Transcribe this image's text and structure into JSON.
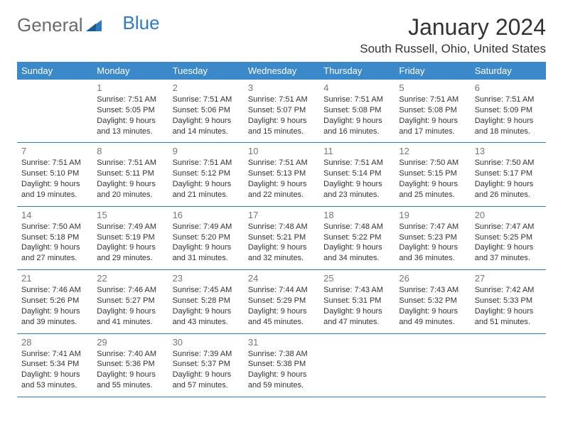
{
  "logo": {
    "text_general": "General",
    "text_blue": "Blue"
  },
  "title": "January 2024",
  "location": "South Russell, Ohio, United States",
  "colors": {
    "header_bg": "#3b89c9",
    "header_text": "#ffffff",
    "border": "#2d7cc1",
    "day_num": "#777777",
    "body_text": "#333333",
    "logo_gray": "#6b6b6b",
    "logo_blue": "#2d7cc1"
  },
  "typography": {
    "title_fontsize": 32,
    "location_fontsize": 17,
    "header_fontsize": 13,
    "daynum_fontsize": 13,
    "info_fontsize": 11
  },
  "day_names": [
    "Sunday",
    "Monday",
    "Tuesday",
    "Wednesday",
    "Thursday",
    "Friday",
    "Saturday"
  ],
  "weeks": [
    [
      null,
      {
        "num": "1",
        "sunrise": "Sunrise: 7:51 AM",
        "sunset": "Sunset: 5:05 PM",
        "daylight1": "Daylight: 9 hours",
        "daylight2": "and 13 minutes."
      },
      {
        "num": "2",
        "sunrise": "Sunrise: 7:51 AM",
        "sunset": "Sunset: 5:06 PM",
        "daylight1": "Daylight: 9 hours",
        "daylight2": "and 14 minutes."
      },
      {
        "num": "3",
        "sunrise": "Sunrise: 7:51 AM",
        "sunset": "Sunset: 5:07 PM",
        "daylight1": "Daylight: 9 hours",
        "daylight2": "and 15 minutes."
      },
      {
        "num": "4",
        "sunrise": "Sunrise: 7:51 AM",
        "sunset": "Sunset: 5:08 PM",
        "daylight1": "Daylight: 9 hours",
        "daylight2": "and 16 minutes."
      },
      {
        "num": "5",
        "sunrise": "Sunrise: 7:51 AM",
        "sunset": "Sunset: 5:08 PM",
        "daylight1": "Daylight: 9 hours",
        "daylight2": "and 17 minutes."
      },
      {
        "num": "6",
        "sunrise": "Sunrise: 7:51 AM",
        "sunset": "Sunset: 5:09 PM",
        "daylight1": "Daylight: 9 hours",
        "daylight2": "and 18 minutes."
      }
    ],
    [
      {
        "num": "7",
        "sunrise": "Sunrise: 7:51 AM",
        "sunset": "Sunset: 5:10 PM",
        "daylight1": "Daylight: 9 hours",
        "daylight2": "and 19 minutes."
      },
      {
        "num": "8",
        "sunrise": "Sunrise: 7:51 AM",
        "sunset": "Sunset: 5:11 PM",
        "daylight1": "Daylight: 9 hours",
        "daylight2": "and 20 minutes."
      },
      {
        "num": "9",
        "sunrise": "Sunrise: 7:51 AM",
        "sunset": "Sunset: 5:12 PM",
        "daylight1": "Daylight: 9 hours",
        "daylight2": "and 21 minutes."
      },
      {
        "num": "10",
        "sunrise": "Sunrise: 7:51 AM",
        "sunset": "Sunset: 5:13 PM",
        "daylight1": "Daylight: 9 hours",
        "daylight2": "and 22 minutes."
      },
      {
        "num": "11",
        "sunrise": "Sunrise: 7:51 AM",
        "sunset": "Sunset: 5:14 PM",
        "daylight1": "Daylight: 9 hours",
        "daylight2": "and 23 minutes."
      },
      {
        "num": "12",
        "sunrise": "Sunrise: 7:50 AM",
        "sunset": "Sunset: 5:15 PM",
        "daylight1": "Daylight: 9 hours",
        "daylight2": "and 25 minutes."
      },
      {
        "num": "13",
        "sunrise": "Sunrise: 7:50 AM",
        "sunset": "Sunset: 5:17 PM",
        "daylight1": "Daylight: 9 hours",
        "daylight2": "and 26 minutes."
      }
    ],
    [
      {
        "num": "14",
        "sunrise": "Sunrise: 7:50 AM",
        "sunset": "Sunset: 5:18 PM",
        "daylight1": "Daylight: 9 hours",
        "daylight2": "and 27 minutes."
      },
      {
        "num": "15",
        "sunrise": "Sunrise: 7:49 AM",
        "sunset": "Sunset: 5:19 PM",
        "daylight1": "Daylight: 9 hours",
        "daylight2": "and 29 minutes."
      },
      {
        "num": "16",
        "sunrise": "Sunrise: 7:49 AM",
        "sunset": "Sunset: 5:20 PM",
        "daylight1": "Daylight: 9 hours",
        "daylight2": "and 31 minutes."
      },
      {
        "num": "17",
        "sunrise": "Sunrise: 7:48 AM",
        "sunset": "Sunset: 5:21 PM",
        "daylight1": "Daylight: 9 hours",
        "daylight2": "and 32 minutes."
      },
      {
        "num": "18",
        "sunrise": "Sunrise: 7:48 AM",
        "sunset": "Sunset: 5:22 PM",
        "daylight1": "Daylight: 9 hours",
        "daylight2": "and 34 minutes."
      },
      {
        "num": "19",
        "sunrise": "Sunrise: 7:47 AM",
        "sunset": "Sunset: 5:23 PM",
        "daylight1": "Daylight: 9 hours",
        "daylight2": "and 36 minutes."
      },
      {
        "num": "20",
        "sunrise": "Sunrise: 7:47 AM",
        "sunset": "Sunset: 5:25 PM",
        "daylight1": "Daylight: 9 hours",
        "daylight2": "and 37 minutes."
      }
    ],
    [
      {
        "num": "21",
        "sunrise": "Sunrise: 7:46 AM",
        "sunset": "Sunset: 5:26 PM",
        "daylight1": "Daylight: 9 hours",
        "daylight2": "and 39 minutes."
      },
      {
        "num": "22",
        "sunrise": "Sunrise: 7:46 AM",
        "sunset": "Sunset: 5:27 PM",
        "daylight1": "Daylight: 9 hours",
        "daylight2": "and 41 minutes."
      },
      {
        "num": "23",
        "sunrise": "Sunrise: 7:45 AM",
        "sunset": "Sunset: 5:28 PM",
        "daylight1": "Daylight: 9 hours",
        "daylight2": "and 43 minutes."
      },
      {
        "num": "24",
        "sunrise": "Sunrise: 7:44 AM",
        "sunset": "Sunset: 5:29 PM",
        "daylight1": "Daylight: 9 hours",
        "daylight2": "and 45 minutes."
      },
      {
        "num": "25",
        "sunrise": "Sunrise: 7:43 AM",
        "sunset": "Sunset: 5:31 PM",
        "daylight1": "Daylight: 9 hours",
        "daylight2": "and 47 minutes."
      },
      {
        "num": "26",
        "sunrise": "Sunrise: 7:43 AM",
        "sunset": "Sunset: 5:32 PM",
        "daylight1": "Daylight: 9 hours",
        "daylight2": "and 49 minutes."
      },
      {
        "num": "27",
        "sunrise": "Sunrise: 7:42 AM",
        "sunset": "Sunset: 5:33 PM",
        "daylight1": "Daylight: 9 hours",
        "daylight2": "and 51 minutes."
      }
    ],
    [
      {
        "num": "28",
        "sunrise": "Sunrise: 7:41 AM",
        "sunset": "Sunset: 5:34 PM",
        "daylight1": "Daylight: 9 hours",
        "daylight2": "and 53 minutes."
      },
      {
        "num": "29",
        "sunrise": "Sunrise: 7:40 AM",
        "sunset": "Sunset: 5:36 PM",
        "daylight1": "Daylight: 9 hours",
        "daylight2": "and 55 minutes."
      },
      {
        "num": "30",
        "sunrise": "Sunrise: 7:39 AM",
        "sunset": "Sunset: 5:37 PM",
        "daylight1": "Daylight: 9 hours",
        "daylight2": "and 57 minutes."
      },
      {
        "num": "31",
        "sunrise": "Sunrise: 7:38 AM",
        "sunset": "Sunset: 5:38 PM",
        "daylight1": "Daylight: 9 hours",
        "daylight2": "and 59 minutes."
      },
      null,
      null,
      null
    ]
  ]
}
